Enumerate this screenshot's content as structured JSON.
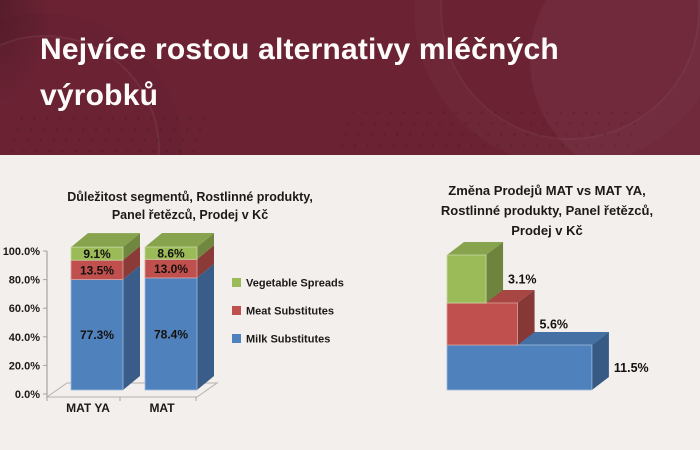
{
  "header": {
    "title": "Nejvíce rostou alternativy mléčných výrobků",
    "title_lines": [
      "Nejvíce rostou alternativy mléčných",
      "výrobků"
    ],
    "bg_color": "#6b2334",
    "text_color": "#fdfcfb"
  },
  "palette": {
    "milk_blue": "#4f81bd",
    "meat_red": "#c0504d",
    "vegetable_green": "#9bbb59",
    "background": "#f3efec",
    "chart_text": "#1c1917"
  },
  "chart_data": [
    {
      "id": "segment-importance",
      "type": "bar",
      "subtype": "3d-stacked-column",
      "title": "Důležitost segmentů, Rostlinné produkty, Panel řetězců, Prodej v Kč",
      "title_lines": [
        "Důležitost segmentů, Rostlinné produkty,",
        "Panel řetězců, Prodej v Kč"
      ],
      "categories": [
        "MAT YA",
        "MAT"
      ],
      "series": [
        {
          "name": "Milk Substitutes",
          "color": "#4f81bd",
          "values": [
            77.3,
            78.4
          ],
          "labels": [
            "77.3%",
            "78.4%"
          ]
        },
        {
          "name": "Meat Substitutes",
          "color": "#c0504d",
          "values": [
            13.5,
            13.0
          ],
          "labels": [
            "13.5%",
            "13.0%"
          ]
        },
        {
          "name": "Vegetable Spreads",
          "color": "#9bbb59",
          "values": [
            9.1,
            8.6
          ],
          "labels": [
            "9.1%",
            "8.6%"
          ]
        }
      ],
      "legend": [
        "Vegetable Spreads",
        "Meat Substitutes",
        "Milk Substitutes"
      ],
      "legend_position": "right",
      "yticks": [
        "0.0%",
        "20.0%",
        "40.0%",
        "60.0%",
        "80.0%",
        "100.0%"
      ],
      "ylim": [
        0,
        100
      ],
      "grid": false
    },
    {
      "id": "sales-change",
      "type": "bar",
      "subtype": "3d-horizontal-bar",
      "title": "Změna Prodejů MAT vs MAT YA, Rostlinné produkty, Panel řetězců, Prodej v Kč",
      "title_lines": [
        "Změna Prodejů MAT vs MAT YA,",
        "Rostlinné produkty, Panel řetězců,",
        "Prodej v Kč"
      ],
      "categories": [
        "Vegetable Spreads",
        "Meat Substitutes",
        "Milk Substitutes"
      ],
      "values": [
        3.1,
        5.6,
        11.5
      ],
      "value_labels": [
        "3.1%",
        "5.6%",
        "11.5%"
      ],
      "colors": [
        "#9bbb59",
        "#c0504d",
        "#4f81bd"
      ],
      "xlim": [
        0,
        12
      ],
      "axis_visible": false
    }
  ]
}
